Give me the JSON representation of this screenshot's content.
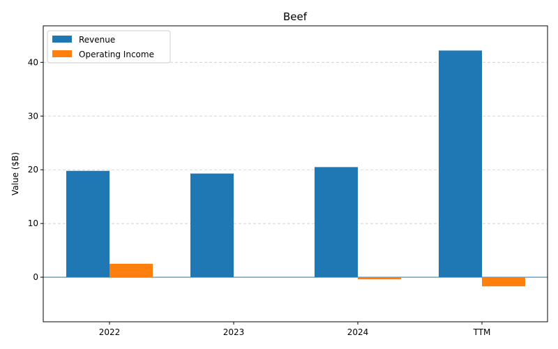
{
  "chart_data": {
    "type": "bar",
    "title": "Beef",
    "xlabel": "",
    "ylabel": "Value ($B)",
    "categories": [
      "2022",
      "2023",
      "2024",
      "TTM"
    ],
    "series": [
      {
        "name": "Revenue",
        "color": "#1f77b4",
        "values": [
          19.8,
          19.3,
          20.5,
          42.2
        ]
      },
      {
        "name": "Operating Income",
        "color": "#ff7f0e",
        "values": [
          2.5,
          0.0,
          -0.4,
          -1.7
        ]
      }
    ],
    "ylim": [
      -8.3,
      46.8
    ],
    "yticks": [
      0,
      10,
      20,
      30,
      40
    ],
    "grid": "y-dashed",
    "legend": "top-left",
    "zero_line": true
  }
}
